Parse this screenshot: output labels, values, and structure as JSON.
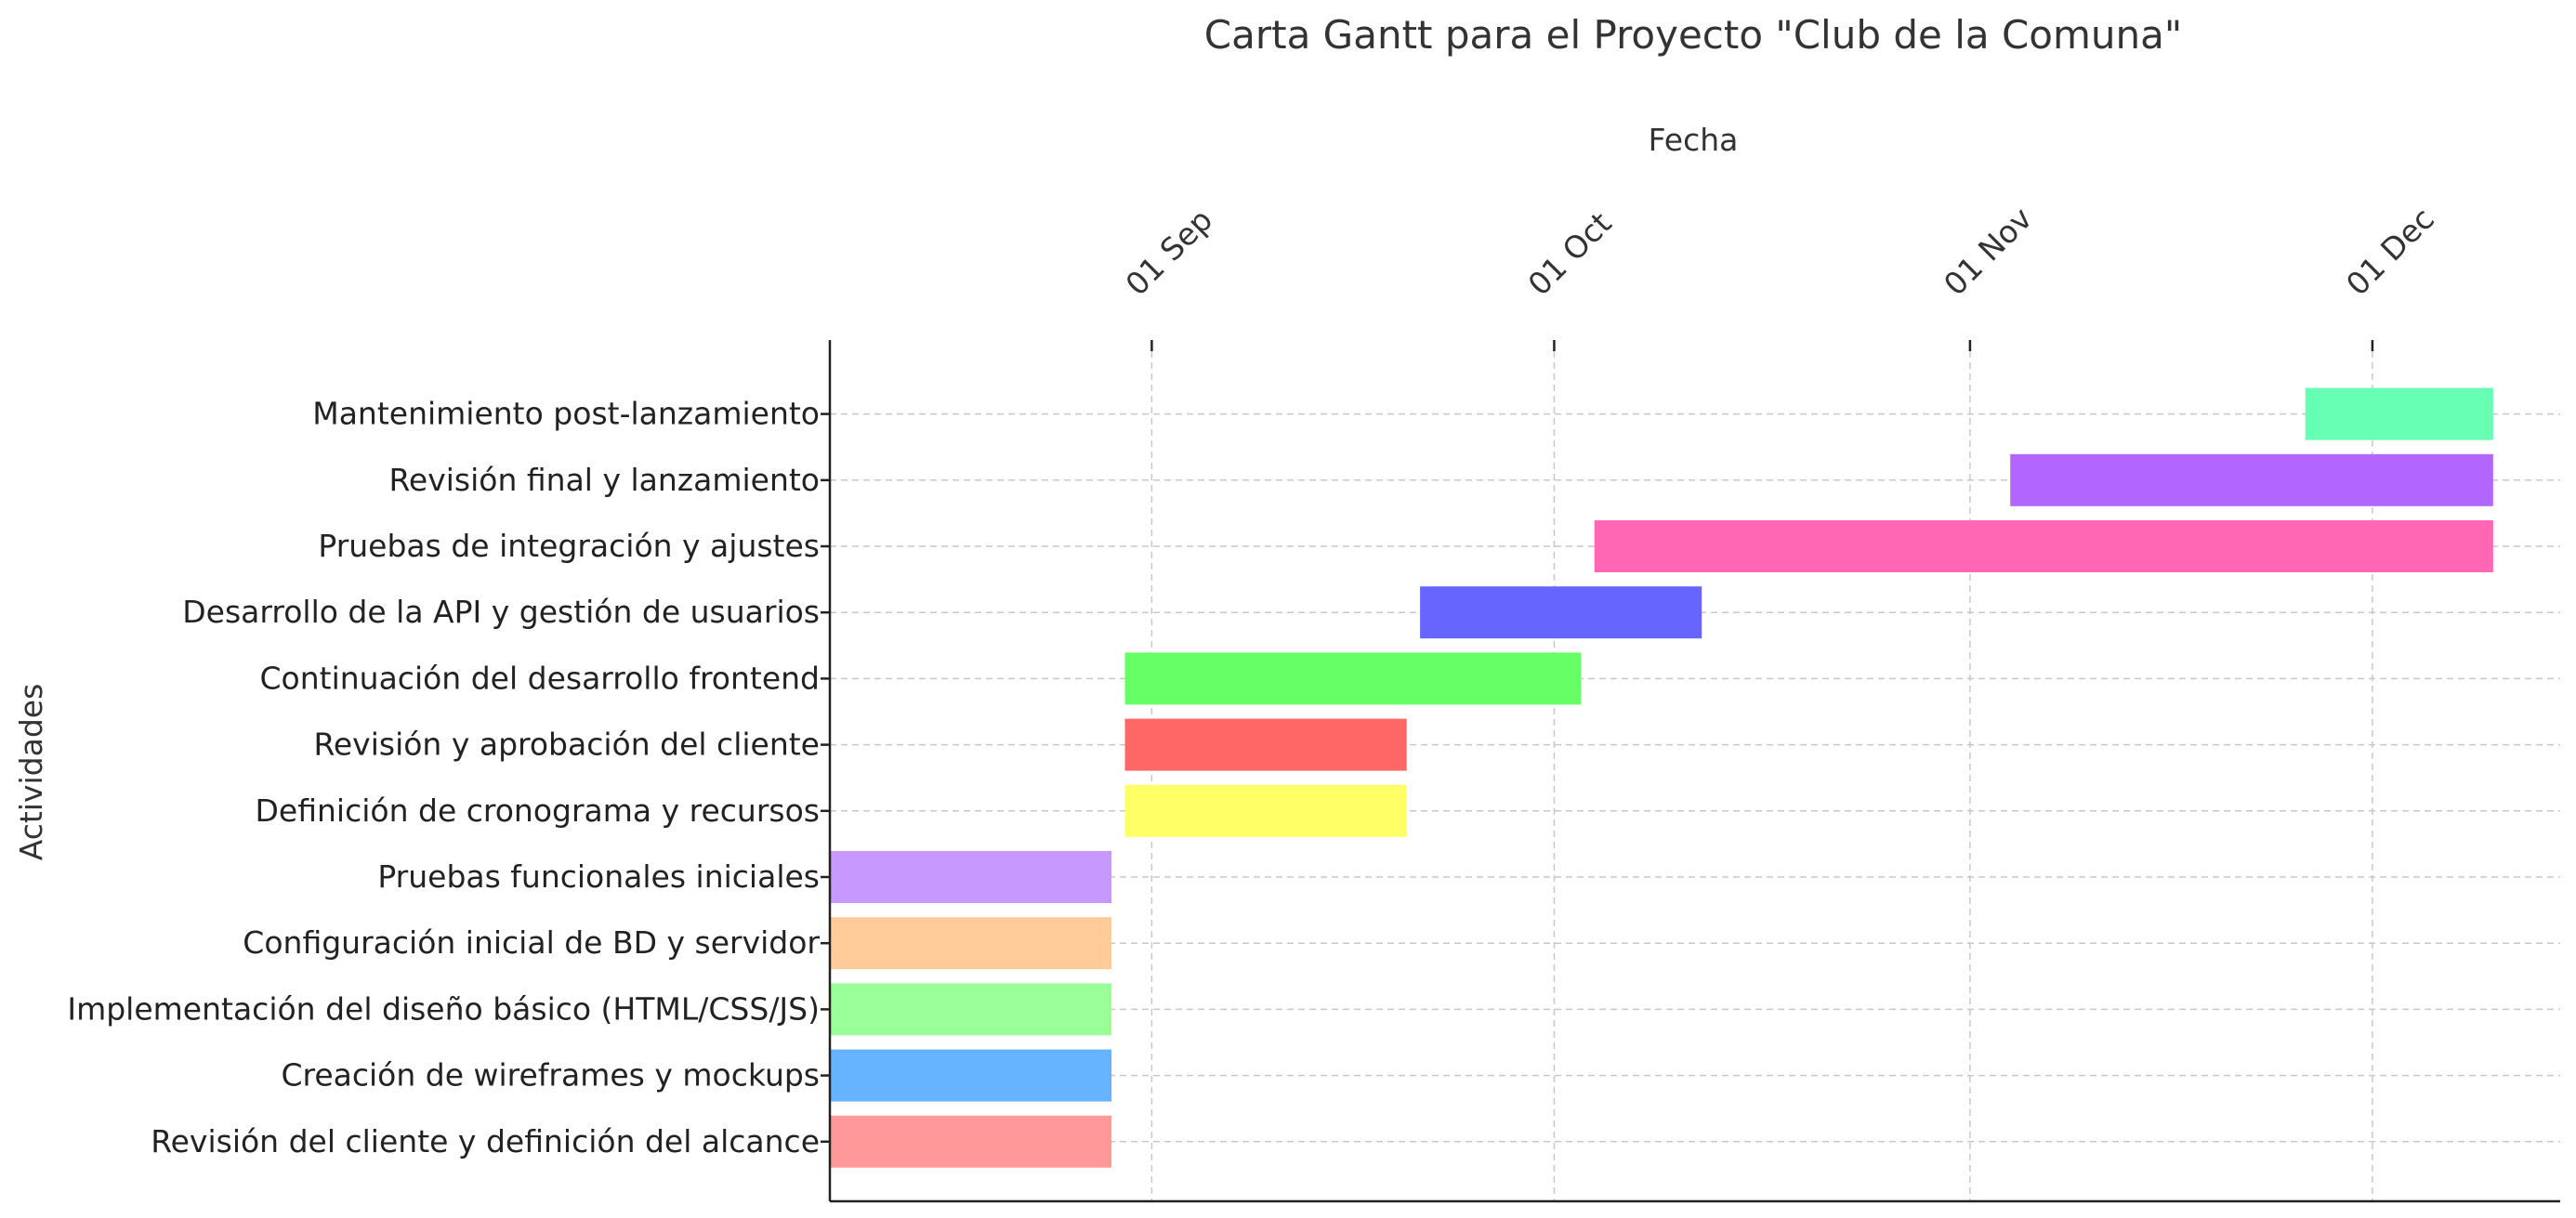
{
  "chart_data": {
    "type": "gantt",
    "title": "Carta Gantt para el Proyecto \"Club de la Comuna\"",
    "xlabel": "Fecha",
    "ylabel": "Actividades",
    "x_axis_position": "top",
    "xlim": [
      "2023-08-08",
      "2023-12-15"
    ],
    "x_ticks": [
      {
        "date": "2023-09-01",
        "label": "01 Sep"
      },
      {
        "date": "2023-10-01",
        "label": "01 Oct"
      },
      {
        "date": "2023-11-01",
        "label": "01 Nov"
      },
      {
        "date": "2023-12-01",
        "label": "01 Dec"
      }
    ],
    "grid": true,
    "tasks": [
      {
        "name": "Revisión del cliente y definición del alcance",
        "start": "2023-08-08",
        "end": "2023-08-29",
        "color": "#ff9999"
      },
      {
        "name": "Creación de wireframes y mockups",
        "start": "2023-08-08",
        "end": "2023-08-29",
        "color": "#66b3ff"
      },
      {
        "name": "Implementación del diseño básico (HTML/CSS/JS)",
        "start": "2023-08-08",
        "end": "2023-08-29",
        "color": "#99ff99"
      },
      {
        "name": "Configuración inicial de BD y servidor",
        "start": "2023-08-08",
        "end": "2023-08-29",
        "color": "#ffcc99"
      },
      {
        "name": "Pruebas funcionales iniciales",
        "start": "2023-08-08",
        "end": "2023-08-29",
        "color": "#c799ff"
      },
      {
        "name": "Definición de cronograma y recursos",
        "start": "2023-08-30",
        "end": "2023-09-20",
        "color": "#ffff66"
      },
      {
        "name": "Revisión y aprobación del cliente",
        "start": "2023-08-30",
        "end": "2023-09-20",
        "color": "#ff6666"
      },
      {
        "name": "Continuación del desarrollo frontend",
        "start": "2023-08-30",
        "end": "2023-10-03",
        "color": "#66ff66"
      },
      {
        "name": "Desarrollo de la API y gestión de usuarios",
        "start": "2023-09-21",
        "end": "2023-10-12",
        "color": "#6666ff"
      },
      {
        "name": "Pruebas de integración y ajustes",
        "start": "2023-10-04",
        "end": "2023-12-10",
        "color": "#ff66b3"
      },
      {
        "name": "Revisión final y lanzamiento",
        "start": "2023-11-04",
        "end": "2023-12-10",
        "color": "#b366ff"
      },
      {
        "name": "Mantenimiento post-lanzamiento",
        "start": "2023-11-26",
        "end": "2023-12-10",
        "color": "#66ffb3"
      }
    ]
  }
}
